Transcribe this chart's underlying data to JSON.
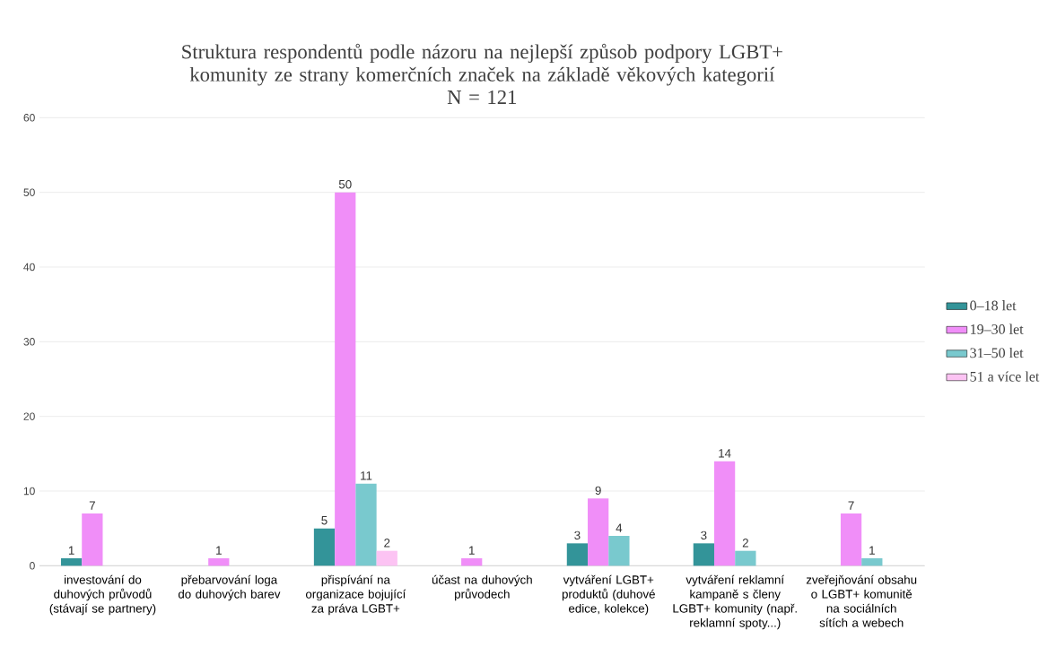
{
  "chart_data": {
    "type": "bar",
    "title": "Struktura respondentů podle názoru na nejlepší způsob podpory LGBT+ komunity ze strany komerčních značek na základě věkových kategorií",
    "subtitle": "N = 121",
    "categories": [
      "investování do duhových průvodů (stávají se partnery)",
      "přebarvování loga do duhových barev",
      "přispívání na organizace bojující za práva LGBT+",
      "účast na duhových průvodech",
      "vytváření LGBT+ produktů (duhové edice, kolekce)",
      "vytváření reklamní kampaně s členy LGBT+ komunity (např. reklamní spoty...)",
      "zveřejňování obsahu o LGBT+ komunitě na sociálních sítích a webech"
    ],
    "series": [
      {
        "name": "0–18 let",
        "color": "#339499",
        "values": [
          1,
          null,
          5,
          null,
          3,
          3,
          null
        ]
      },
      {
        "name": "19–30 let",
        "color": "#f08ef8",
        "values": [
          7,
          1,
          50,
          1,
          9,
          14,
          7
        ]
      },
      {
        "name": "31–50 let",
        "color": "#79c9ce",
        "values": [
          null,
          null,
          11,
          null,
          4,
          2,
          1
        ]
      },
      {
        "name": "51 a více let",
        "color": "#fcc3f3",
        "values": [
          null,
          null,
          2,
          null,
          null,
          null,
          null
        ]
      }
    ],
    "ylim": [
      0,
      60
    ],
    "yticks": [
      0,
      10,
      20,
      30,
      40,
      50,
      60
    ],
    "grid": "y",
    "legend": "right",
    "data_labels": true
  }
}
